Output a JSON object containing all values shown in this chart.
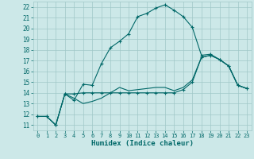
{
  "xlabel": "Humidex (Indice chaleur)",
  "x_ticks": [
    0,
    1,
    2,
    3,
    4,
    5,
    6,
    7,
    8,
    9,
    10,
    11,
    12,
    13,
    14,
    15,
    16,
    17,
    18,
    19,
    20,
    21,
    22,
    23
  ],
  "y_ticks": [
    11,
    12,
    13,
    14,
    15,
    16,
    17,
    18,
    19,
    20,
    21,
    22
  ],
  "ylim": [
    10.5,
    22.5
  ],
  "xlim": [
    -0.5,
    23.5
  ],
  "bg_color": "#cce8e8",
  "grid_color": "#a0c8c8",
  "line_color": "#006868",
  "curve1_x": [
    0,
    1,
    2,
    3,
    4,
    5,
    6,
    7,
    8,
    9,
    10,
    11,
    12,
    13,
    14,
    15,
    16,
    17,
    18,
    19,
    20,
    21,
    22,
    23
  ],
  "curve1_y": [
    11.8,
    11.8,
    11.0,
    13.9,
    13.3,
    14.8,
    14.7,
    16.7,
    18.2,
    18.8,
    19.5,
    21.1,
    21.4,
    21.9,
    22.2,
    21.7,
    21.1,
    20.1,
    17.5,
    17.6,
    17.1,
    16.5,
    14.7,
    14.4
  ],
  "curve2_x": [
    0,
    1,
    2,
    3,
    4,
    5,
    6,
    7,
    8,
    9,
    10,
    11,
    12,
    13,
    14,
    15,
    16,
    17,
    18,
    19,
    20,
    21,
    22,
    23
  ],
  "curve2_y": [
    11.8,
    11.8,
    11.0,
    13.9,
    13.9,
    14.0,
    14.0,
    14.0,
    14.0,
    14.0,
    14.0,
    14.0,
    14.0,
    14.0,
    14.0,
    14.0,
    14.3,
    15.0,
    17.3,
    17.5,
    17.1,
    16.5,
    14.7,
    14.4
  ],
  "curve3_x": [
    0,
    1,
    2,
    3,
    4,
    5,
    6,
    7,
    8,
    9,
    10,
    11,
    12,
    13,
    14,
    15,
    16,
    17,
    18,
    19,
    20,
    21,
    22,
    23
  ],
  "curve3_y": [
    11.8,
    11.8,
    11.0,
    13.9,
    13.5,
    13.0,
    13.2,
    13.5,
    14.0,
    14.5,
    14.2,
    14.3,
    14.4,
    14.5,
    14.5,
    14.2,
    14.5,
    15.2,
    17.3,
    17.5,
    17.1,
    16.5,
    14.7,
    14.4
  ]
}
